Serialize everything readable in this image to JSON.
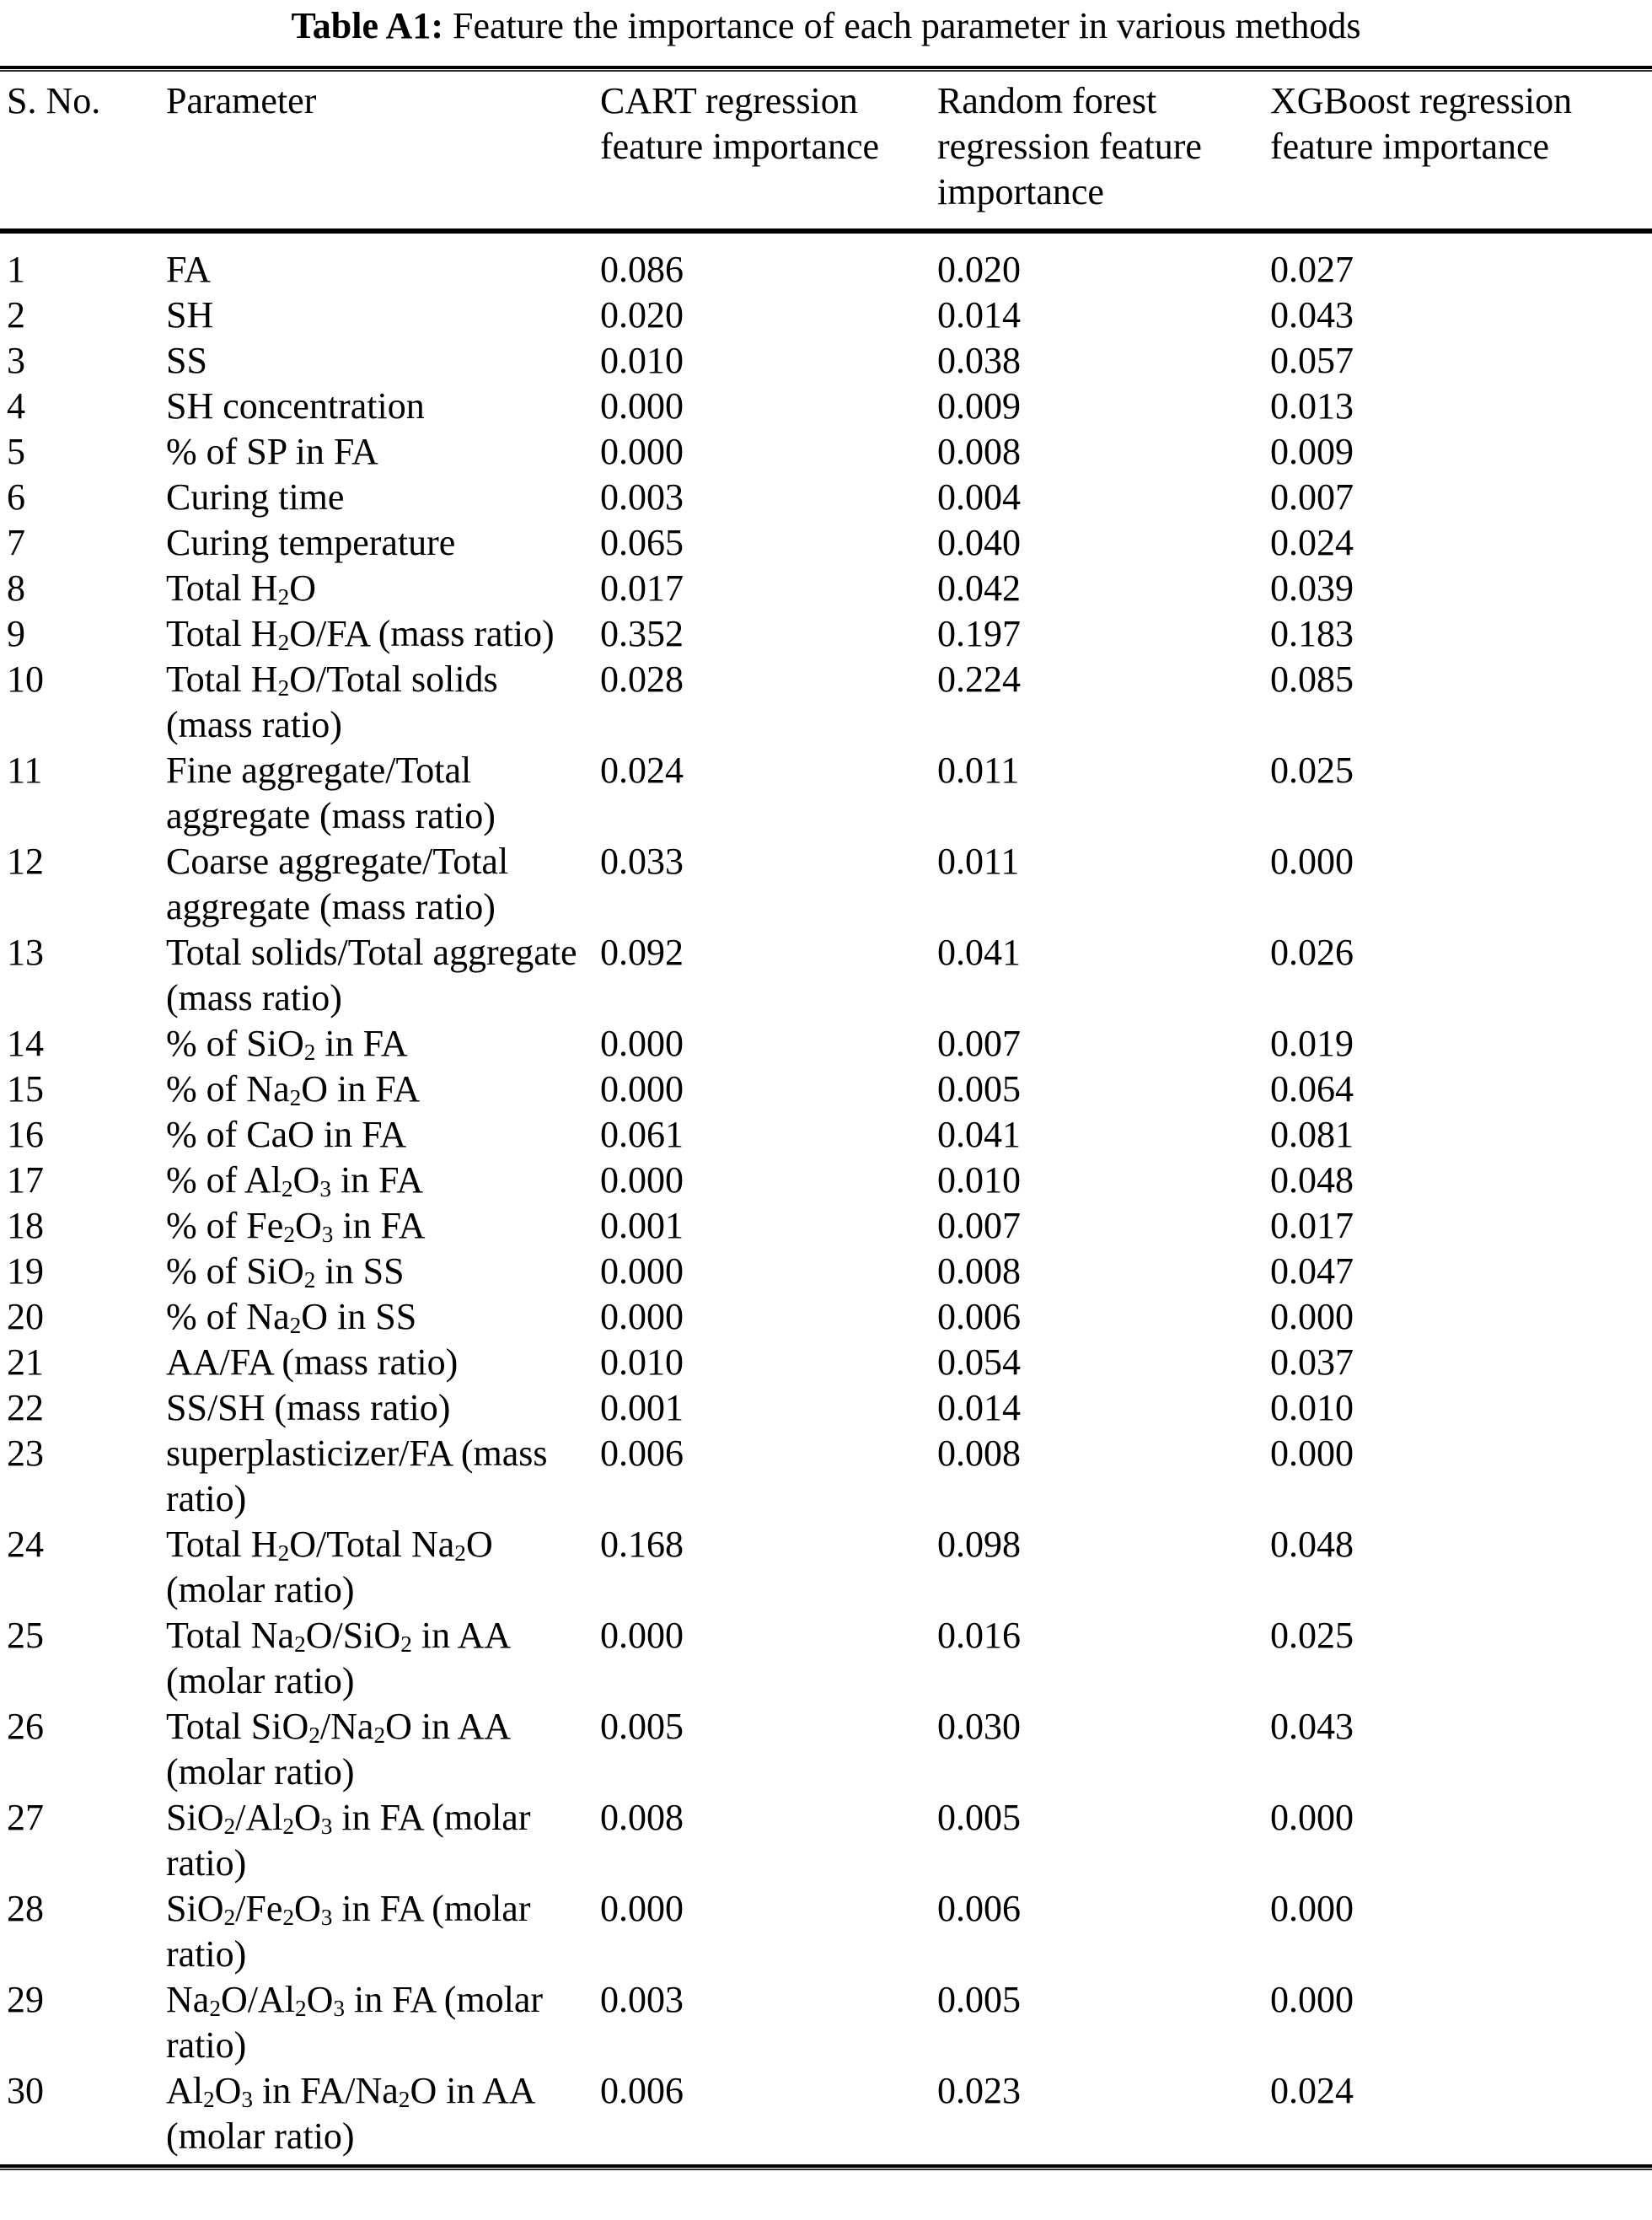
{
  "title": {
    "label": "Table A1:",
    "text": "Feature the importance of each parameter in various methods"
  },
  "table": {
    "columns": [
      "S. No.",
      "Parameter",
      "CART regression feature importance",
      "Random forest regression feature importance",
      "XGBoost regression feature importance"
    ],
    "rows": [
      {
        "no": "1",
        "parameter": "FA",
        "cart": "0.086",
        "rf": "0.020",
        "xgb": "0.027"
      },
      {
        "no": "2",
        "parameter": "SH",
        "cart": "0.020",
        "rf": "0.014",
        "xgb": "0.043"
      },
      {
        "no": "3",
        "parameter": "SS",
        "cart": "0.010",
        "rf": "0.038",
        "xgb": "0.057"
      },
      {
        "no": "4",
        "parameter": "SH concentration",
        "cart": "0.000",
        "rf": "0.009",
        "xgb": "0.013"
      },
      {
        "no": "5",
        "parameter": "% of SP in FA",
        "cart": "0.000",
        "rf": "0.008",
        "xgb": "0.009"
      },
      {
        "no": "6",
        "parameter": "Curing time",
        "cart": "0.003",
        "rf": "0.004",
        "xgb": "0.007"
      },
      {
        "no": "7",
        "parameter": "Curing temperature",
        "cart": "0.065",
        "rf": "0.040",
        "xgb": "0.024"
      },
      {
        "no": "8",
        "parameter": "Total H₂O",
        "cart": "0.017",
        "rf": "0.042",
        "xgb": "0.039"
      },
      {
        "no": "9",
        "parameter": "Total H₂O/FA (mass ratio)",
        "cart": "0.352",
        "rf": "0.197",
        "xgb": "0.183"
      },
      {
        "no": "10",
        "parameter": "Total H₂O/Total solids (mass ratio)",
        "cart": "0.028",
        "rf": "0.224",
        "xgb": "0.085"
      },
      {
        "no": "11",
        "parameter": "Fine aggregate/Total aggregate (mass ratio)",
        "cart": "0.024",
        "rf": "0.011",
        "xgb": "0.025"
      },
      {
        "no": "12",
        "parameter": "Coarse aggregate/Total aggregate (mass ratio)",
        "cart": "0.033",
        "rf": "0.011",
        "xgb": "0.000"
      },
      {
        "no": "13",
        "parameter": "Total solids/Total aggregate (mass ratio)",
        "cart": "0.092",
        "rf": "0.041",
        "xgb": "0.026"
      },
      {
        "no": "14",
        "parameter": "% of SiO₂ in FA",
        "cart": "0.000",
        "rf": "0.007",
        "xgb": "0.019"
      },
      {
        "no": "15",
        "parameter": "% of Na₂O in FA",
        "cart": "0.000",
        "rf": "0.005",
        "xgb": "0.064"
      },
      {
        "no": "16",
        "parameter": "% of CaO in FA",
        "cart": "0.061",
        "rf": "0.041",
        "xgb": "0.081"
      },
      {
        "no": "17",
        "parameter": "% of Al₂O₃ in FA",
        "cart": "0.000",
        "rf": "0.010",
        "xgb": "0.048"
      },
      {
        "no": "18",
        "parameter": "% of Fe₂O₃ in FA",
        "cart": "0.001",
        "rf": "0.007",
        "xgb": "0.017"
      },
      {
        "no": "19",
        "parameter": "% of SiO₂ in SS",
        "cart": "0.000",
        "rf": "0.008",
        "xgb": "0.047"
      },
      {
        "no": "20",
        "parameter": "% of Na₂O in SS",
        "cart": "0.000",
        "rf": "0.006",
        "xgb": "0.000"
      },
      {
        "no": "21",
        "parameter": "AA/FA (mass ratio)",
        "cart": "0.010",
        "rf": "0.054",
        "xgb": "0.037"
      },
      {
        "no": "22",
        "parameter": "SS/SH (mass ratio)",
        "cart": "0.001",
        "rf": "0.014",
        "xgb": "0.010"
      },
      {
        "no": "23",
        "parameter": "superplasticizer/FA (mass ratio)",
        "cart": "0.006",
        "rf": "0.008",
        "xgb": "0.000"
      },
      {
        "no": "24",
        "parameter": "Total H₂O/Total Na₂O (molar ratio)",
        "cart": "0.168",
        "rf": "0.098",
        "xgb": "0.048"
      },
      {
        "no": "25",
        "parameter": "Total Na₂O/SiO₂ in AA (molar ratio)",
        "cart": "0.000",
        "rf": "0.016",
        "xgb": "0.025"
      },
      {
        "no": "26",
        "parameter": "Total SiO₂/Na₂O in AA (molar ratio)",
        "cart": "0.005",
        "rf": "0.030",
        "xgb": "0.043"
      },
      {
        "no": "27",
        "parameter": "SiO₂/Al₂O₃ in FA (molar ratio)",
        "cart": "0.008",
        "rf": "0.005",
        "xgb": "0.000"
      },
      {
        "no": "28",
        "parameter": "SiO₂/Fe₂O₃ in FA (molar ratio)",
        "cart": "0.000",
        "rf": "0.006",
        "xgb": "0.000"
      },
      {
        "no": "29",
        "parameter": "Na₂O/Al₂O₃ in FA (molar ratio)",
        "cart": "0.003",
        "rf": "0.005",
        "xgb": "0.000"
      },
      {
        "no": "30",
        "parameter": "Al₂O₃ in FA/Na₂O in AA (molar ratio)",
        "cart": "0.006",
        "rf": "0.023",
        "xgb": "0.024"
      }
    ]
  }
}
